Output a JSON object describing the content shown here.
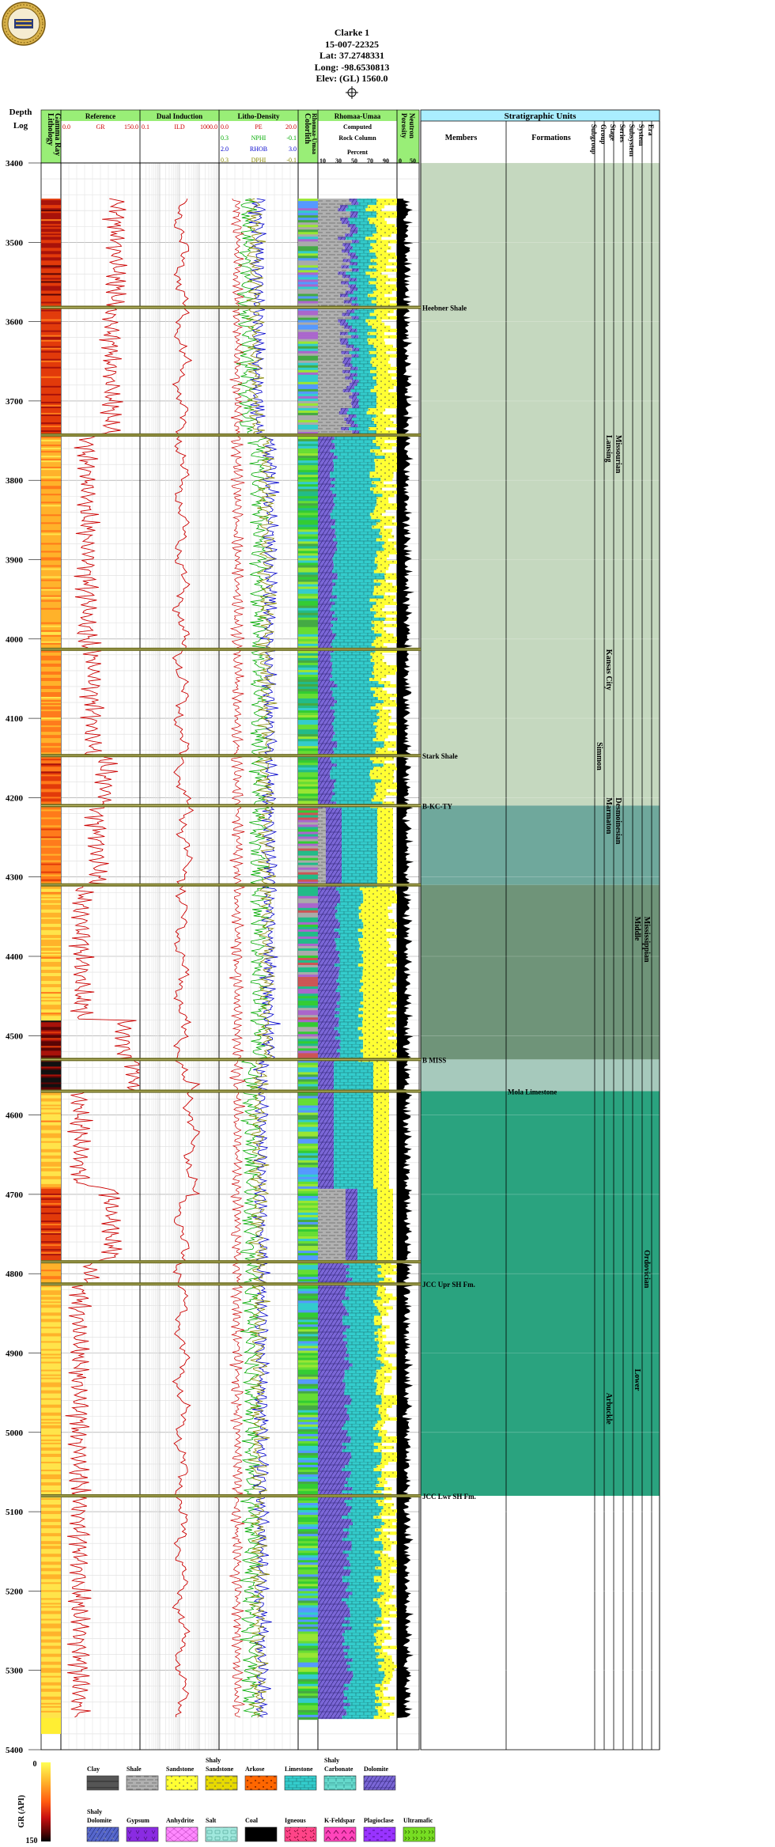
{
  "well": {
    "name": "Clarke 1",
    "api": "15-007-22325",
    "lat": "Lat: 37.2748331",
    "long": "Long: -98.6530813",
    "elev": "Elev: (GL) 1560.0"
  },
  "logo": {
    "icon": "seal-logo-icon"
  },
  "headers": {
    "depth": "Depth",
    "log": "Log",
    "lithology": "Lithology",
    "gamma_ray": "Gamma Ray",
    "reference": "Reference",
    "dual_induction": "Dual Induction",
    "litho_density": "Litho-Density",
    "colorlith": "Colorlith",
    "rhomaa_umaa_vert": "Rhomaa-Umaa",
    "rhomaa_umaa": "Rhomaa-Umaa",
    "computed": "Computed",
    "rock_column": "Rock Column",
    "percent": "Percent",
    "porosity": "Porosity",
    "neutron": "Neutron",
    "strat_units": "Stratigraphic Units",
    "members": "Members",
    "formations": "Formations",
    "subgroup": "Subgroup",
    "group": "Group",
    "stage": "Stage",
    "series": "Series",
    "subsystem": "Subsystem",
    "system": "System",
    "era": "Era"
  },
  "scales": {
    "gr": {
      "min": "0.0",
      "label": "GR",
      "max": "150.0"
    },
    "ild": {
      "min": "0.1",
      "label": "ILD",
      "max": "1000.0"
    },
    "pe": {
      "min": "0.0",
      "label": "PE",
      "max": "20.0",
      "color": "#cc0000"
    },
    "nphi": {
      "min": "0.3",
      "label": "NPHI",
      "max": "-0.1",
      "color": "#00aa00"
    },
    "rhob": {
      "min": "2.0",
      "label": "RHOB",
      "max": "3.0",
      "color": "#0000cc"
    },
    "dphi": {
      "min": "0.3",
      "label": "DPHI",
      "max": "-0.1",
      "color": "#888800"
    },
    "percent_ticks": [
      "10",
      "30",
      "50",
      "70",
      "90"
    ],
    "porosity_ticks": [
      "0",
      "50"
    ]
  },
  "chart_data": {
    "type": "well-log",
    "depth_range": [
      3400,
      5400
    ],
    "depth_ticks": [
      3400,
      3500,
      3600,
      3700,
      3800,
      3900,
      4000,
      4100,
      4200,
      4300,
      4400,
      4500,
      4600,
      4700,
      4800,
      4900,
      5000,
      5100,
      5200,
      5300,
      5400
    ],
    "log_start": 3445,
    "log_end": 5360,
    "tops": [
      {
        "depth": 3582,
        "name": "Heebner Shale",
        "column": "members"
      },
      {
        "depth": 3743,
        "name": "",
        "column": "members"
      },
      {
        "depth": 4013,
        "name": "",
        "column": "members"
      },
      {
        "depth": 4147,
        "name": "Stark Shale",
        "column": "members"
      },
      {
        "depth": 4210,
        "name": "B-KC-TY",
        "column": "members"
      },
      {
        "depth": 4310,
        "name": "",
        "column": "members"
      },
      {
        "depth": 4530,
        "name": "B MISS",
        "column": "members"
      },
      {
        "depth": 4570,
        "name": "Mola Limestone",
        "column": "formations"
      },
      {
        "depth": 4785,
        "name": "",
        "column": "members"
      },
      {
        "depth": 4813,
        "name": "JCC Upr SH Fm.",
        "column": "members"
      },
      {
        "depth": 5080,
        "name": "JCC Lwr SH Fm.",
        "column": "members"
      }
    ],
    "strat_units": [
      {
        "name": "Lansing",
        "column": "group",
        "top": 3743,
        "bottom": 4013
      },
      {
        "name": "Kansas City",
        "column": "group",
        "top": 4013,
        "bottom": 4200
      },
      {
        "name": "Missourian",
        "column": "stage",
        "top": 3743,
        "bottom": 4110
      },
      {
        "name": "Simmon",
        "column": "subgroup",
        "top": 4130,
        "bottom": 4200
      },
      {
        "name": "Marmaton",
        "column": "group",
        "top": 4200,
        "bottom": 4300
      },
      {
        "name": "Desmoinesian",
        "column": "stage",
        "top": 4200,
        "bottom": 4320
      },
      {
        "name": "Middle",
        "column": "subsystem",
        "top": 4350,
        "bottom": 4440
      },
      {
        "name": "Mississippian",
        "column": "system",
        "top": 4350,
        "bottom": 4480
      },
      {
        "name": "Arbuckle",
        "column": "group",
        "top": 4950,
        "bottom": 5050
      },
      {
        "name": "Lower",
        "column": "subsystem",
        "top": 4920,
        "bottom": 5000
      },
      {
        "name": "Ordovician",
        "column": "system",
        "top": 4770,
        "bottom": 4880
      }
    ],
    "legend": {
      "gr_scale": {
        "label": "GR (API)",
        "min": "0",
        "max": "150"
      },
      "items": [
        {
          "name": "Clay",
          "color": "#555555",
          "pattern": "clay"
        },
        {
          "name": "Shale",
          "color": "#b0b0b0",
          "pattern": "shale"
        },
        {
          "name": "Sandstone",
          "color": "#ffff33",
          "pattern": "sand"
        },
        {
          "name": "Shaly Sandstone",
          "color": "#e6d900",
          "pattern": "shalysand"
        },
        {
          "name": "Arkose",
          "color": "#ff6600",
          "pattern": "arkose"
        },
        {
          "name": "Limestone",
          "color": "#33cccc",
          "pattern": "lime"
        },
        {
          "name": "Shaly Carbonate",
          "color": "#66d9cc",
          "pattern": "shalycarb"
        },
        {
          "name": "Dolomite",
          "color": "#7a66d6",
          "pattern": "dolo"
        },
        {
          "name": "Shaly Dolomite",
          "color": "#5566cc",
          "pattern": "shalydolo"
        },
        {
          "name": "Gypsum",
          "color": "#8a2be2",
          "pattern": "gyp"
        },
        {
          "name": "Anhydrite",
          "color": "#ff88ff",
          "pattern": "anhy"
        },
        {
          "name": "Salt",
          "color": "#a0e8dd",
          "pattern": "salt"
        },
        {
          "name": "Coal",
          "color": "#000000",
          "pattern": "coal"
        },
        {
          "name": "Igneous",
          "color": "#ff4488",
          "pattern": "ign"
        },
        {
          "name": "K-Feldspar",
          "color": "#ff44bb",
          "pattern": "kspar"
        },
        {
          "name": "Plagioclase",
          "color": "#9933ff",
          "pattern": "plag"
        },
        {
          "name": "Ultramafic",
          "color": "#77dd22",
          "pattern": "ultra"
        }
      ]
    }
  }
}
